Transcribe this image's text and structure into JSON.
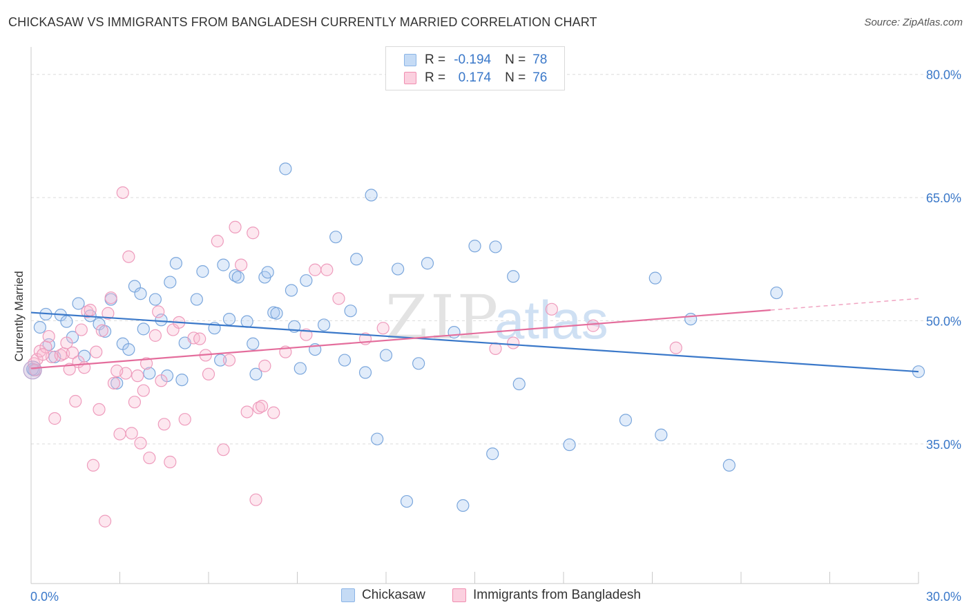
{
  "title": "CHICKASAW VS IMMIGRANTS FROM BANGLADESH CURRENTLY MARRIED CORRELATION CHART",
  "source": "Source: ZipAtlas.com",
  "watermark": {
    "zip": "ZIP",
    "atlas": "atlas"
  },
  "legend": {
    "r_label": "R =",
    "n_label": "N =",
    "entries": [
      {
        "name": "Chickasaw",
        "r": "-0.194",
        "n": "78",
        "color": "#8ab4e6",
        "fill": "#c5dbf5"
      },
      {
        "name": "Immigrants from Bangladesh",
        "r": "0.174",
        "n": "76",
        "color": "#f08db0",
        "fill": "#fbd0df"
      }
    ]
  },
  "chart_data": {
    "type": "scatter",
    "title": "CHICKASAW VS IMMIGRANTS FROM BANGLADESH CURRENTLY MARRIED CORRELATION CHART",
    "xlabel": "",
    "ylabel": "Currently Married",
    "xlim": [
      0,
      30
    ],
    "ylim": [
      18,
      82.5
    ],
    "x_tick_labels": [
      "0.0%",
      "30.0%"
    ],
    "y_ticks": [
      35,
      50,
      65,
      80
    ],
    "y_tick_labels": [
      "35.0%",
      "50.0%",
      "65.0%",
      "80.0%"
    ],
    "grid": true,
    "legend_position": "top-center",
    "series": [
      {
        "name": "Chickasaw",
        "color": "#3a78c9",
        "trend": {
          "x": [
            0,
            30
          ],
          "y": [
            51.0,
            43.8
          ]
        },
        "points": [
          [
            0.1,
            44.0
          ],
          [
            0.3,
            49.2
          ],
          [
            0.5,
            50.8
          ],
          [
            0.6,
            47.1
          ],
          [
            0.8,
            45.6
          ],
          [
            1.0,
            50.7
          ],
          [
            1.2,
            49.9
          ],
          [
            1.4,
            48.0
          ],
          [
            1.6,
            52.1
          ],
          [
            1.8,
            45.7
          ],
          [
            2.0,
            50.6
          ],
          [
            2.3,
            49.6
          ],
          [
            2.5,
            48.7
          ],
          [
            2.7,
            52.6
          ],
          [
            2.9,
            42.4
          ],
          [
            3.1,
            47.2
          ],
          [
            3.3,
            46.5
          ],
          [
            3.5,
            54.2
          ],
          [
            3.7,
            53.3
          ],
          [
            3.8,
            49.0
          ],
          [
            4.0,
            43.6
          ],
          [
            4.2,
            52.6
          ],
          [
            4.4,
            50.1
          ],
          [
            4.6,
            43.3
          ],
          [
            4.7,
            54.7
          ],
          [
            4.9,
            57.0
          ],
          [
            5.1,
            42.8
          ],
          [
            5.2,
            47.3
          ],
          [
            5.6,
            52.6
          ],
          [
            5.8,
            56.0
          ],
          [
            6.2,
            49.1
          ],
          [
            6.4,
            45.2
          ],
          [
            6.5,
            56.8
          ],
          [
            6.7,
            50.2
          ],
          [
            6.9,
            55.5
          ],
          [
            7.0,
            55.3
          ],
          [
            7.3,
            49.9
          ],
          [
            7.5,
            47.2
          ],
          [
            7.6,
            43.5
          ],
          [
            7.9,
            55.3
          ],
          [
            8.0,
            55.9
          ],
          [
            8.2,
            51.0
          ],
          [
            8.3,
            50.9
          ],
          [
            8.6,
            68.5
          ],
          [
            8.8,
            53.7
          ],
          [
            8.9,
            49.3
          ],
          [
            9.1,
            44.2
          ],
          [
            9.3,
            54.9
          ],
          [
            9.6,
            46.5
          ],
          [
            9.9,
            49.5
          ],
          [
            10.3,
            60.2
          ],
          [
            10.6,
            45.2
          ],
          [
            10.8,
            51.2
          ],
          [
            11.0,
            57.5
          ],
          [
            11.3,
            43.7
          ],
          [
            11.5,
            65.3
          ],
          [
            11.7,
            35.6
          ],
          [
            12.0,
            45.8
          ],
          [
            12.4,
            56.3
          ],
          [
            12.7,
            28.0
          ],
          [
            13.1,
            44.8
          ],
          [
            13.4,
            57.0
          ],
          [
            14.3,
            48.6
          ],
          [
            14.6,
            27.5
          ],
          [
            15.0,
            59.1
          ],
          [
            15.6,
            33.8
          ],
          [
            15.7,
            59.0
          ],
          [
            16.3,
            55.4
          ],
          [
            16.5,
            42.3
          ],
          [
            18.2,
            34.9
          ],
          [
            20.1,
            37.9
          ],
          [
            21.1,
            55.2
          ],
          [
            21.3,
            36.1
          ],
          [
            22.3,
            50.2
          ],
          [
            23.6,
            32.4
          ],
          [
            25.2,
            53.4
          ],
          [
            30.0,
            43.8
          ],
          [
            0.05,
            44.1
          ]
        ]
      },
      {
        "name": "Immigrants from Bangladesh",
        "color": "#e46d9c",
        "trend": {
          "x": [
            0,
            25
          ],
          "y": [
            44.2,
            51.3
          ]
        },
        "trend_dashed": {
          "x": [
            25,
            30
          ],
          "y": [
            51.3,
            52.7
          ]
        },
        "points": [
          [
            0.1,
            44.8
          ],
          [
            0.2,
            45.3
          ],
          [
            0.3,
            46.3
          ],
          [
            0.5,
            46.8
          ],
          [
            0.6,
            48.1
          ],
          [
            0.7,
            45.6
          ],
          [
            0.8,
            38.1
          ],
          [
            1.0,
            45.8
          ],
          [
            1.1,
            46.0
          ],
          [
            1.3,
            44.1
          ],
          [
            1.4,
            46.1
          ],
          [
            1.5,
            40.2
          ],
          [
            1.6,
            45.0
          ],
          [
            1.7,
            48.9
          ],
          [
            1.8,
            44.3
          ],
          [
            1.9,
            51.1
          ],
          [
            2.0,
            51.3
          ],
          [
            2.1,
            32.4
          ],
          [
            2.2,
            46.2
          ],
          [
            2.3,
            39.2
          ],
          [
            2.4,
            48.8
          ],
          [
            2.5,
            25.6
          ],
          [
            2.6,
            50.9
          ],
          [
            2.7,
            52.8
          ],
          [
            2.8,
            42.4
          ],
          [
            3.0,
            36.2
          ],
          [
            3.1,
            65.6
          ],
          [
            3.2,
            43.6
          ],
          [
            3.3,
            57.8
          ],
          [
            3.4,
            36.3
          ],
          [
            3.5,
            40.1
          ],
          [
            3.6,
            43.3
          ],
          [
            3.7,
            35.1
          ],
          [
            3.8,
            41.5
          ],
          [
            3.9,
            44.8
          ],
          [
            4.0,
            33.3
          ],
          [
            4.2,
            48.2
          ],
          [
            4.3,
            51.1
          ],
          [
            4.4,
            42.7
          ],
          [
            4.5,
            37.4
          ],
          [
            4.7,
            32.8
          ],
          [
            4.8,
            48.9
          ],
          [
            5.0,
            49.8
          ],
          [
            5.2,
            38.0
          ],
          [
            5.5,
            47.9
          ],
          [
            5.7,
            47.8
          ],
          [
            5.9,
            45.8
          ],
          [
            6.0,
            43.5
          ],
          [
            6.3,
            59.7
          ],
          [
            6.5,
            34.3
          ],
          [
            6.7,
            45.2
          ],
          [
            6.9,
            61.4
          ],
          [
            7.1,
            56.8
          ],
          [
            7.3,
            38.9
          ],
          [
            7.5,
            60.7
          ],
          [
            7.6,
            28.2
          ],
          [
            7.7,
            39.4
          ],
          [
            7.8,
            39.6
          ],
          [
            7.9,
            44.5
          ],
          [
            8.2,
            38.8
          ],
          [
            8.6,
            46.2
          ],
          [
            9.3,
            48.3
          ],
          [
            9.6,
            56.2
          ],
          [
            10.0,
            56.2
          ],
          [
            10.4,
            52.7
          ],
          [
            11.3,
            47.8
          ],
          [
            11.9,
            49.1
          ],
          [
            15.7,
            46.6
          ],
          [
            16.3,
            47.3
          ],
          [
            17.6,
            51.4
          ],
          [
            19.0,
            49.4
          ],
          [
            21.8,
            46.7
          ],
          [
            0.15,
            44.0
          ],
          [
            0.4,
            45.9
          ],
          [
            2.9,
            43.9
          ],
          [
            1.2,
            47.3
          ]
        ]
      }
    ]
  }
}
